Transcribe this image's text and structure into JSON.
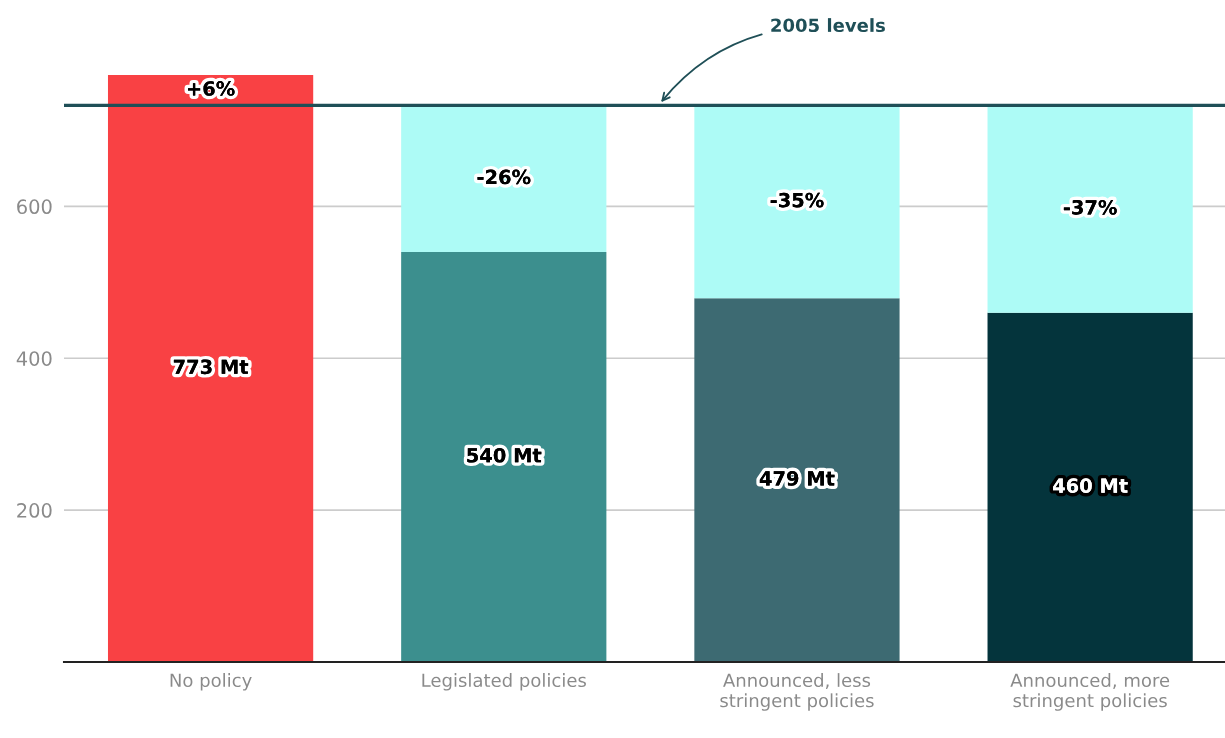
{
  "chart_data": {
    "type": "bar",
    "categories": [
      "No policy",
      "Legislated policies",
      "Announced, less\nstringent policies",
      "Announced, more\nstringent policies"
    ],
    "stacked": true,
    "series": [
      {
        "colors": [
          "#f94144",
          "#3c8f8e",
          "#3d6a72",
          "#04343c"
        ],
        "values": [
          773,
          540,
          479,
          460
        ],
        "value_labels": [
          "773 Mt",
          "540 Mt",
          "479 Mt",
          "460 Mt"
        ]
      },
      {
        "color": "#adfbf6",
        "values": [
          null,
          193,
          254,
          273
        ]
      }
    ],
    "ylim": [
      0,
      773
    ],
    "yticks": [
      200,
      400,
      600
    ],
    "grid": "y",
    "ref_lines": [
      {
        "axis": "y",
        "value": 733,
        "label": "2005 levels",
        "color": "#1f4f57"
      }
    ],
    "annotations": [
      "+6%",
      "-26%",
      "-35%",
      "-37%"
    ]
  }
}
